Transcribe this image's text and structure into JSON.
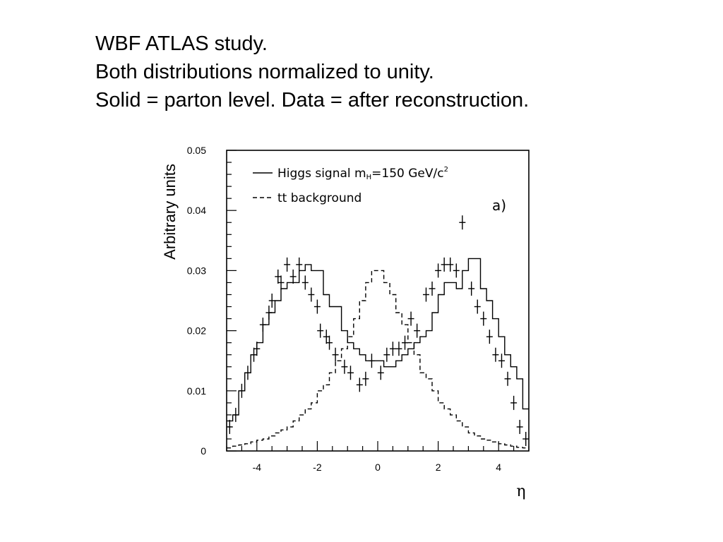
{
  "slide": {
    "lines": [
      "WBF ATLAS study.",
      "Both distributions normalized to unity.",
      "Solid = parton level. Data = after reconstruction."
    ]
  },
  "chart_data": {
    "type": "line",
    "ylabel": "Arbitrary units",
    "xlabel": "η",
    "panel_label": "a)",
    "xlim": [
      -5,
      5
    ],
    "ylim": [
      0,
      0.05
    ],
    "x_ticks": [
      "-4",
      "-2",
      "0",
      "2",
      "4"
    ],
    "y_ticks": [
      "0",
      "0.01",
      "0.02",
      "0.03",
      "0.04",
      "0.05"
    ],
    "legend": {
      "placement": "top-left",
      "entries": [
        {
          "style": "solid",
          "label_main": "Higgs signal m",
          "label_sub": "H",
          "label_after": "=150 GeV/c",
          "label_sup": "2"
        },
        {
          "style": "dashed",
          "label_main": "tt background"
        }
      ]
    },
    "series": [
      {
        "name": "Higgs signal mH=150 GeV/c2",
        "style": "solid-step",
        "bin_width": 0.2,
        "x_start": -5.0,
        "values": [
          0.005,
          0.006,
          0.01,
          0.013,
          0.016,
          0.018,
          0.021,
          0.023,
          0.025,
          0.027,
          0.028,
          0.028,
          0.03,
          0.031,
          0.03,
          0.03,
          0.026,
          0.024,
          0.024,
          0.02,
          0.018,
          0.017,
          0.016,
          0.015,
          0.015,
          0.015,
          0.014,
          0.014,
          0.015,
          0.016,
          0.017,
          0.018,
          0.019,
          0.02,
          0.023,
          0.026,
          0.028,
          0.028,
          0.027,
          0.03,
          0.032,
          0.032,
          0.027,
          0.025,
          0.022,
          0.019,
          0.016,
          0.014,
          0.012,
          0.007
        ]
      },
      {
        "name": "tt background",
        "style": "dashed-step",
        "bin_width": 0.2,
        "x_start": -5.0,
        "values": [
          0.0005,
          0.0008,
          0.001,
          0.0012,
          0.0015,
          0.0018,
          0.002,
          0.0025,
          0.003,
          0.0035,
          0.004,
          0.005,
          0.006,
          0.007,
          0.008,
          0.01,
          0.011,
          0.013,
          0.015,
          0.017,
          0.019,
          0.022,
          0.025,
          0.028,
          0.03,
          0.03,
          0.028,
          0.026,
          0.023,
          0.021,
          0.018,
          0.016,
          0.013,
          0.012,
          0.01,
          0.008,
          0.007,
          0.006,
          0.005,
          0.004,
          0.003,
          0.0025,
          0.002,
          0.0018,
          0.0015,
          0.0012,
          0.001,
          0.0008,
          0.0006,
          0.0005
        ]
      },
      {
        "name": "data after reconstruction",
        "style": "crosses",
        "points": [
          [
            -4.9,
            0.004
          ],
          [
            -4.7,
            0.006
          ],
          [
            -4.5,
            0.01
          ],
          [
            -4.3,
            0.013
          ],
          [
            -4.1,
            0.016
          ],
          [
            -4.0,
            0.017
          ],
          [
            -3.8,
            0.021
          ],
          [
            -3.6,
            0.023
          ],
          [
            -3.5,
            0.025
          ],
          [
            -3.3,
            0.029
          ],
          [
            -3.2,
            0.028
          ],
          [
            -3.0,
            0.031
          ],
          [
            -2.8,
            0.029
          ],
          [
            -2.6,
            0.031
          ],
          [
            -2.4,
            0.028
          ],
          [
            -2.2,
            0.026
          ],
          [
            -2.0,
            0.024
          ],
          [
            -1.9,
            0.02
          ],
          [
            -1.7,
            0.019
          ],
          [
            -1.6,
            0.018
          ],
          [
            -1.4,
            0.016
          ],
          [
            -1.1,
            0.014
          ],
          [
            -0.9,
            0.013
          ],
          [
            -0.6,
            0.011
          ],
          [
            -0.4,
            0.012
          ],
          [
            -0.2,
            0.015
          ],
          [
            0.1,
            0.013
          ],
          [
            0.3,
            0.016
          ],
          [
            0.5,
            0.017
          ],
          [
            0.7,
            0.017
          ],
          [
            0.9,
            0.018
          ],
          [
            1.1,
            0.022
          ],
          [
            1.3,
            0.02
          ],
          [
            1.6,
            0.026
          ],
          [
            1.8,
            0.027
          ],
          [
            2.0,
            0.03
          ],
          [
            2.2,
            0.031
          ],
          [
            2.4,
            0.031
          ],
          [
            2.6,
            0.03
          ],
          [
            2.8,
            0.038
          ],
          [
            3.1,
            0.027
          ],
          [
            3.3,
            0.024
          ],
          [
            3.5,
            0.022
          ],
          [
            3.7,
            0.019
          ],
          [
            3.9,
            0.016
          ],
          [
            4.1,
            0.015
          ],
          [
            4.3,
            0.012
          ],
          [
            4.5,
            0.008
          ],
          [
            4.7,
            0.004
          ],
          [
            4.9,
            0.002
          ]
        ]
      }
    ]
  }
}
